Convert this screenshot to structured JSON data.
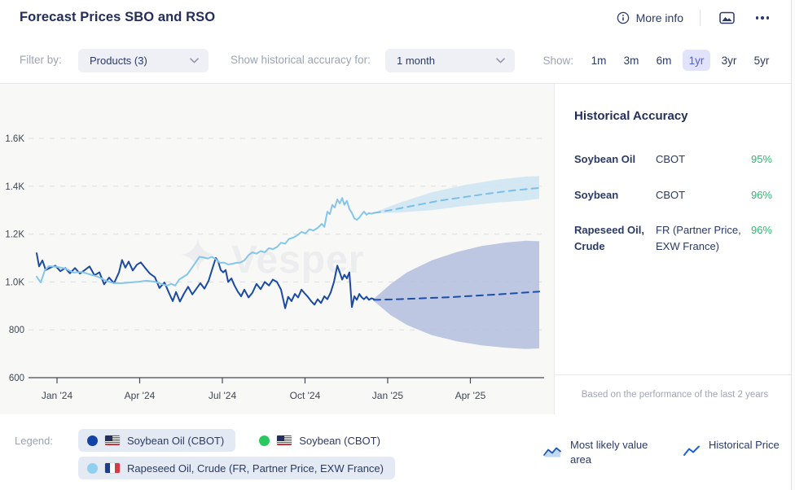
{
  "header": {
    "title": "Forecast Prices SBO and RSO",
    "more_info_label": "More info"
  },
  "filter_bar": {
    "filter_by_label": "Filter by:",
    "products_dropdown": {
      "value": "Products (3)"
    },
    "accuracy_for_label": "Show historical accuracy for:",
    "accuracy_dropdown": {
      "value": "1 month"
    },
    "show_label": "Show:",
    "ranges": [
      {
        "label": "1m",
        "selected": false
      },
      {
        "label": "3m",
        "selected": false
      },
      {
        "label": "6m",
        "selected": false
      },
      {
        "label": "1yr",
        "selected": true
      },
      {
        "label": "3yr",
        "selected": false
      },
      {
        "label": "5yr",
        "selected": false
      }
    ]
  },
  "accuracy_panel": {
    "title": "Historical Accuracy",
    "rows": [
      {
        "product": "Soybean Oil",
        "exchange": "CBOT",
        "accuracy": "95%"
      },
      {
        "product": "Soybean",
        "exchange": "CBOT",
        "accuracy": "96%"
      },
      {
        "product": "Rapeseed Oil, Crude",
        "exchange": "FR (Partner Price, EXW France)",
        "accuracy": "96%"
      }
    ],
    "footnote": "Based on the performance of the last 2 years"
  },
  "legend": {
    "label": "Legend:",
    "items": [
      {
        "label": "Soybean Oil (CBOT)",
        "dot_color": "#1243a8",
        "flag": "us",
        "active": true
      },
      {
        "label": "Soybean (CBOT)",
        "dot_color": "#2bc85f",
        "flag": "us",
        "active": false
      },
      {
        "label": "Rapeseed Oil, Crude (FR, Partner Price, EXW France)",
        "dot_color": "#8fd0f0",
        "flag": "fr",
        "active": true
      }
    ],
    "indicators": [
      {
        "label": "Most likely value area"
      },
      {
        "label": "Historical Price"
      }
    ]
  },
  "watermark": "Vesper",
  "chart_data": {
    "type": "line",
    "title": "Forecast Prices SBO and RSO",
    "x_axis": {
      "unit": "months from Jan 2024",
      "min": -1.03,
      "max": 17.68,
      "ticks": [
        {
          "t": 0,
          "label": "Jan '24"
        },
        {
          "t": 3,
          "label": "Apr '24"
        },
        {
          "t": 6,
          "label": "Jul '24"
        },
        {
          "t": 9,
          "label": "Oct '24"
        },
        {
          "t": 12,
          "label": "Jan '25"
        },
        {
          "t": 15,
          "label": "Apr '25"
        }
      ]
    },
    "y_axis": {
      "unit": "price",
      "min": 600,
      "max": 1804,
      "grid": "dashed",
      "ticks": [
        {
          "v": 1600,
          "label": "1.6K"
        },
        {
          "v": 1400,
          "label": "1.4K"
        },
        {
          "v": 1200,
          "label": "1.2K"
        },
        {
          "v": 1000,
          "label": "1.0K"
        },
        {
          "v": 800,
          "label": "800"
        },
        {
          "v": 600,
          "label": "600"
        }
      ]
    },
    "series": [
      {
        "name": "Soybean Oil (CBOT) historical",
        "color": "#1b4aa2",
        "style": "solid",
        "points": [
          [
            -0.74,
            1120
          ],
          [
            -0.65,
            1065
          ],
          [
            -0.53,
            1090
          ],
          [
            -0.41,
            1050
          ],
          [
            -0.24,
            1060
          ],
          [
            -0.06,
            1068
          ],
          [
            0.12,
            1045
          ],
          [
            0.3,
            1058
          ],
          [
            0.47,
            1036
          ],
          [
            0.65,
            1058
          ],
          [
            0.83,
            1035
          ],
          [
            1.01,
            1050
          ],
          [
            1.18,
            1065
          ],
          [
            1.36,
            1028
          ],
          [
            1.54,
            1040
          ],
          [
            1.71,
            990
          ],
          [
            1.89,
            1018
          ],
          [
            2.07,
            995
          ],
          [
            2.25,
            1040
          ],
          [
            2.36,
            1092
          ],
          [
            2.48,
            1060
          ],
          [
            2.6,
            1085
          ],
          [
            2.75,
            1048
          ],
          [
            2.9,
            1072
          ],
          [
            3.04,
            1082
          ],
          [
            3.19,
            1060
          ],
          [
            3.37,
            1035
          ],
          [
            3.55,
            1020
          ],
          [
            3.72,
            975
          ],
          [
            3.9,
            998
          ],
          [
            4.08,
            950
          ],
          [
            4.2,
            920
          ],
          [
            4.32,
            958
          ],
          [
            4.46,
            918
          ],
          [
            4.61,
            952
          ],
          [
            4.76,
            980
          ],
          [
            4.91,
            948
          ],
          [
            5.05,
            970
          ],
          [
            5.2,
            995
          ],
          [
            5.35,
            972
          ],
          [
            5.5,
            1005
          ],
          [
            5.65,
            1060
          ],
          [
            5.76,
            1100
          ],
          [
            5.85,
            1085
          ],
          [
            5.94,
            1050
          ],
          [
            6.03,
            1040
          ],
          [
            6.12,
            1050
          ],
          [
            6.21,
            1000
          ],
          [
            6.33,
            1015
          ],
          [
            6.44,
            985
          ],
          [
            6.56,
            960
          ],
          [
            6.68,
            940
          ],
          [
            6.8,
            968
          ],
          [
            6.95,
            935
          ],
          [
            7.09,
            955
          ],
          [
            7.24,
            992
          ],
          [
            7.39,
            970
          ],
          [
            7.54,
            1000
          ],
          [
            7.69,
            985
          ],
          [
            7.83,
            1010
          ],
          [
            7.98,
            1000
          ],
          [
            8.13,
            968
          ],
          [
            8.28,
            890
          ],
          [
            8.39,
            938
          ],
          [
            8.51,
            920
          ],
          [
            8.63,
            950
          ],
          [
            8.75,
            935
          ],
          [
            8.87,
            968
          ],
          [
            8.99,
            952
          ],
          [
            9.1,
            938
          ],
          [
            9.22,
            920
          ],
          [
            9.34,
            905
          ],
          [
            9.46,
            928
          ],
          [
            9.58,
            912
          ],
          [
            9.7,
            940
          ],
          [
            9.81,
            928
          ],
          [
            9.93,
            955
          ],
          [
            10.05,
            1000
          ],
          [
            10.17,
            1068
          ],
          [
            10.26,
            1040
          ],
          [
            10.35,
            1010
          ],
          [
            10.43,
            1030
          ],
          [
            10.52,
            1015
          ],
          [
            10.61,
            1040
          ],
          [
            10.7,
            895
          ],
          [
            10.79,
            940
          ],
          [
            10.88,
            925
          ],
          [
            10.97,
            950
          ],
          [
            11.06,
            935
          ],
          [
            11.14,
            928
          ],
          [
            11.23,
            938
          ],
          [
            11.32,
            925
          ],
          [
            11.41,
            932
          ],
          [
            11.5,
            928
          ]
        ]
      },
      {
        "name": "Rapeseed Oil, Crude (FR) historical",
        "color": "#85c6ea",
        "style": "solid",
        "points": [
          [
            -0.74,
            1022
          ],
          [
            -0.59,
            998
          ],
          [
            -0.44,
            1049
          ],
          [
            -0.3,
            1066
          ],
          [
            0.0,
            1063
          ],
          [
            0.3,
            1056
          ],
          [
            0.59,
            1039
          ],
          [
            0.89,
            1042
          ],
          [
            1.18,
            1032
          ],
          [
            1.48,
            1022
          ],
          [
            1.77,
            1005
          ],
          [
            2.07,
            995
          ],
          [
            2.36,
            995
          ],
          [
            2.66,
            998
          ],
          [
            2.96,
            1001
          ],
          [
            3.25,
            1005
          ],
          [
            3.55,
            1001
          ],
          [
            3.84,
            990
          ],
          [
            3.99,
            985
          ],
          [
            4.14,
            992
          ],
          [
            4.29,
            985
          ],
          [
            4.43,
            1010
          ],
          [
            4.73,
            1032
          ],
          [
            5.02,
            1080
          ],
          [
            5.17,
            1105
          ],
          [
            5.32,
            1102
          ],
          [
            5.47,
            1098
          ],
          [
            5.62,
            1105
          ],
          [
            5.76,
            1095
          ],
          [
            5.91,
            1080
          ],
          [
            6.06,
            1081
          ],
          [
            6.21,
            1073
          ],
          [
            6.36,
            1076
          ],
          [
            6.5,
            1080
          ],
          [
            6.65,
            1081
          ],
          [
            6.8,
            1090
          ],
          [
            6.95,
            1112
          ],
          [
            7.09,
            1124
          ],
          [
            7.24,
            1118
          ],
          [
            7.39,
            1129
          ],
          [
            7.54,
            1124
          ],
          [
            7.69,
            1141
          ],
          [
            7.83,
            1137
          ],
          [
            7.98,
            1146
          ],
          [
            8.13,
            1164
          ],
          [
            8.28,
            1160
          ],
          [
            8.42,
            1180
          ],
          [
            8.57,
            1185
          ],
          [
            8.72,
            1195
          ],
          [
            8.87,
            1209
          ],
          [
            9.02,
            1203
          ],
          [
            9.16,
            1220
          ],
          [
            9.31,
            1215
          ],
          [
            9.46,
            1226
          ],
          [
            9.61,
            1243
          ],
          [
            9.7,
            1230
          ],
          [
            9.81,
            1294
          ],
          [
            9.9,
            1283
          ],
          [
            9.99,
            1322
          ],
          [
            10.08,
            1311
          ],
          [
            10.17,
            1345
          ],
          [
            10.26,
            1328
          ],
          [
            10.35,
            1351
          ],
          [
            10.43,
            1322
          ],
          [
            10.52,
            1339
          ],
          [
            10.61,
            1305
          ],
          [
            10.7,
            1288
          ],
          [
            10.79,
            1266
          ],
          [
            10.88,
            1260
          ],
          [
            10.97,
            1269
          ],
          [
            11.06,
            1283
          ],
          [
            11.14,
            1294
          ],
          [
            11.23,
            1281
          ],
          [
            11.32,
            1288
          ],
          [
            11.41,
            1285
          ],
          [
            11.5,
            1288
          ]
        ]
      },
      {
        "name": "Soybean Oil (CBOT) forecast",
        "color": "#1d4fa8",
        "style": "dashed",
        "points": [
          [
            11.5,
            925
          ],
          [
            12.4,
            928
          ],
          [
            13.3,
            932
          ],
          [
            14.2,
            936
          ],
          [
            15.1,
            942
          ],
          [
            16.0,
            948
          ],
          [
            16.9,
            955
          ],
          [
            17.5,
            960
          ]
        ]
      },
      {
        "name": "Rapeseed Oil, Crude (FR) forecast",
        "color": "#7bbfe9",
        "style": "dashed",
        "points": [
          [
            11.5,
            1288
          ],
          [
            12.1,
            1300
          ],
          [
            13.0,
            1320
          ],
          [
            13.9,
            1340
          ],
          [
            14.8,
            1355
          ],
          [
            15.7,
            1370
          ],
          [
            16.6,
            1383
          ],
          [
            17.5,
            1393
          ]
        ]
      }
    ],
    "bands": [
      {
        "name": "Soybean Oil most likely value area",
        "color": "#b3bedd",
        "opacity": 0.85,
        "upper": [
          [
            11.5,
            930
          ],
          [
            12.1,
            990
          ],
          [
            12.7,
            1040
          ],
          [
            13.6,
            1090
          ],
          [
            14.5,
            1125
          ],
          [
            15.4,
            1150
          ],
          [
            16.3,
            1165
          ],
          [
            17.0,
            1172
          ],
          [
            17.5,
            1170
          ]
        ],
        "lower": [
          [
            11.5,
            920
          ],
          [
            12.1,
            862
          ],
          [
            12.7,
            820
          ],
          [
            13.6,
            778
          ],
          [
            14.5,
            752
          ],
          [
            15.4,
            735
          ],
          [
            16.3,
            725
          ],
          [
            17.0,
            720
          ],
          [
            17.5,
            722
          ]
        ]
      },
      {
        "name": "Rapeseed Oil most likely value area",
        "color": "#cfe5f3",
        "opacity": 0.9,
        "upper": [
          [
            11.5,
            1290
          ],
          [
            12.4,
            1330
          ],
          [
            13.6,
            1375
          ],
          [
            14.8,
            1405
          ],
          [
            16.0,
            1428
          ],
          [
            17.0,
            1440
          ],
          [
            17.5,
            1443
          ]
        ],
        "lower": [
          [
            11.5,
            1286
          ],
          [
            12.4,
            1290
          ],
          [
            13.6,
            1300
          ],
          [
            14.8,
            1318
          ],
          [
            16.0,
            1332
          ],
          [
            17.0,
            1340
          ],
          [
            17.5,
            1348
          ]
        ]
      }
    ]
  }
}
